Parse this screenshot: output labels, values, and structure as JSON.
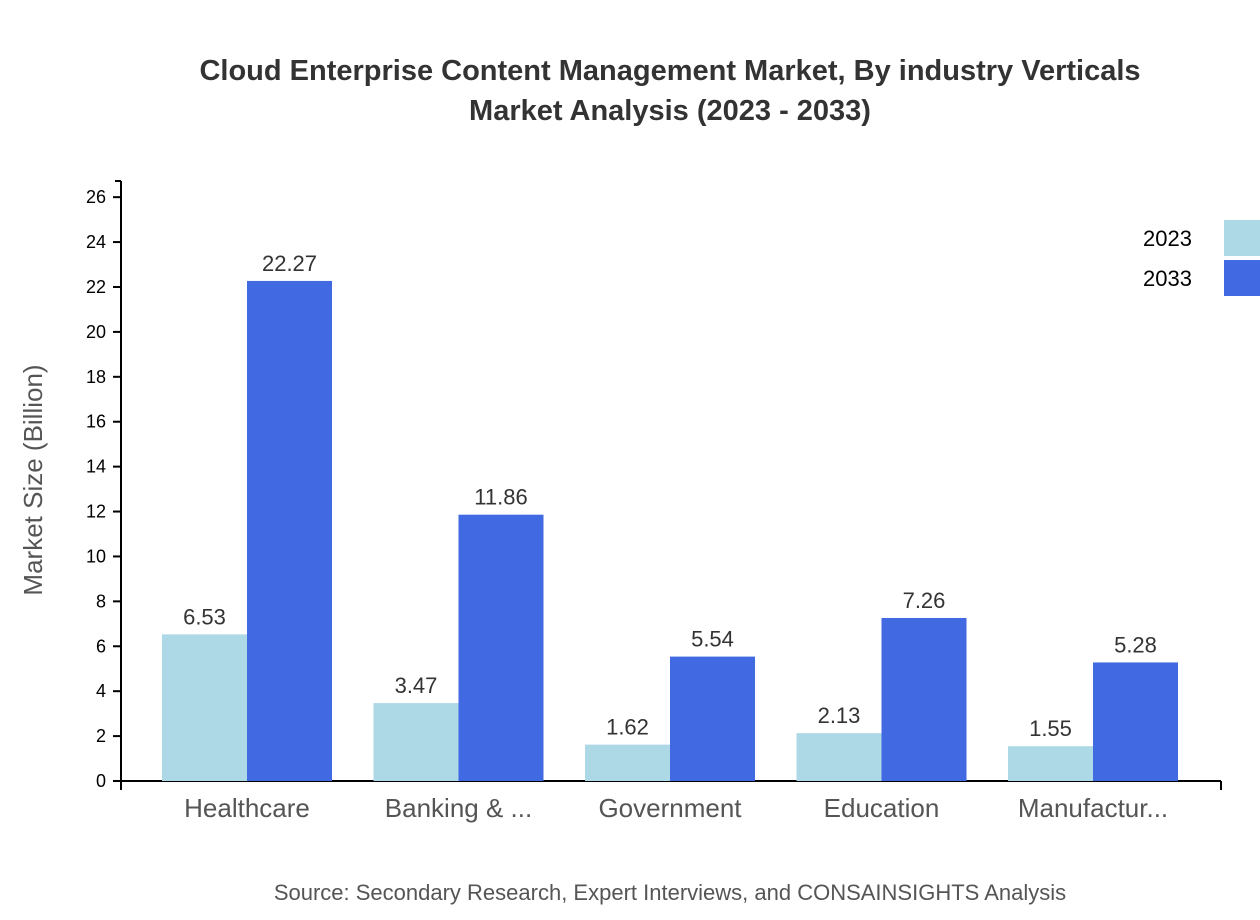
{
  "chart_data": {
    "type": "bar",
    "title": "Cloud Enterprise Content Management Market, By industry Verticals",
    "subtitle": "Market Analysis (2023 - 2033)",
    "ylabel": "Market Size (Billion)",
    "xlabel": "",
    "ylim": [
      0,
      26.72
    ],
    "yticks": [
      0,
      2,
      4,
      6,
      8,
      10,
      12,
      14,
      16,
      18,
      20,
      22,
      24,
      26
    ],
    "categories": [
      "Healthcare",
      "Banking & ...",
      "Government",
      "Education",
      "Manufactur..."
    ],
    "series": [
      {
        "name": "2023",
        "color": "#ADD8E6",
        "values": [
          6.53,
          3.47,
          1.62,
          2.13,
          1.55
        ]
      },
      {
        "name": "2033",
        "color": "#4169E1",
        "values": [
          22.27,
          11.86,
          5.54,
          7.26,
          5.28
        ]
      }
    ],
    "legend_position": "top-right",
    "grid": false,
    "source": "Source: Secondary Research, Expert Interviews, and CONSAINSIGHTS Analysis"
  }
}
